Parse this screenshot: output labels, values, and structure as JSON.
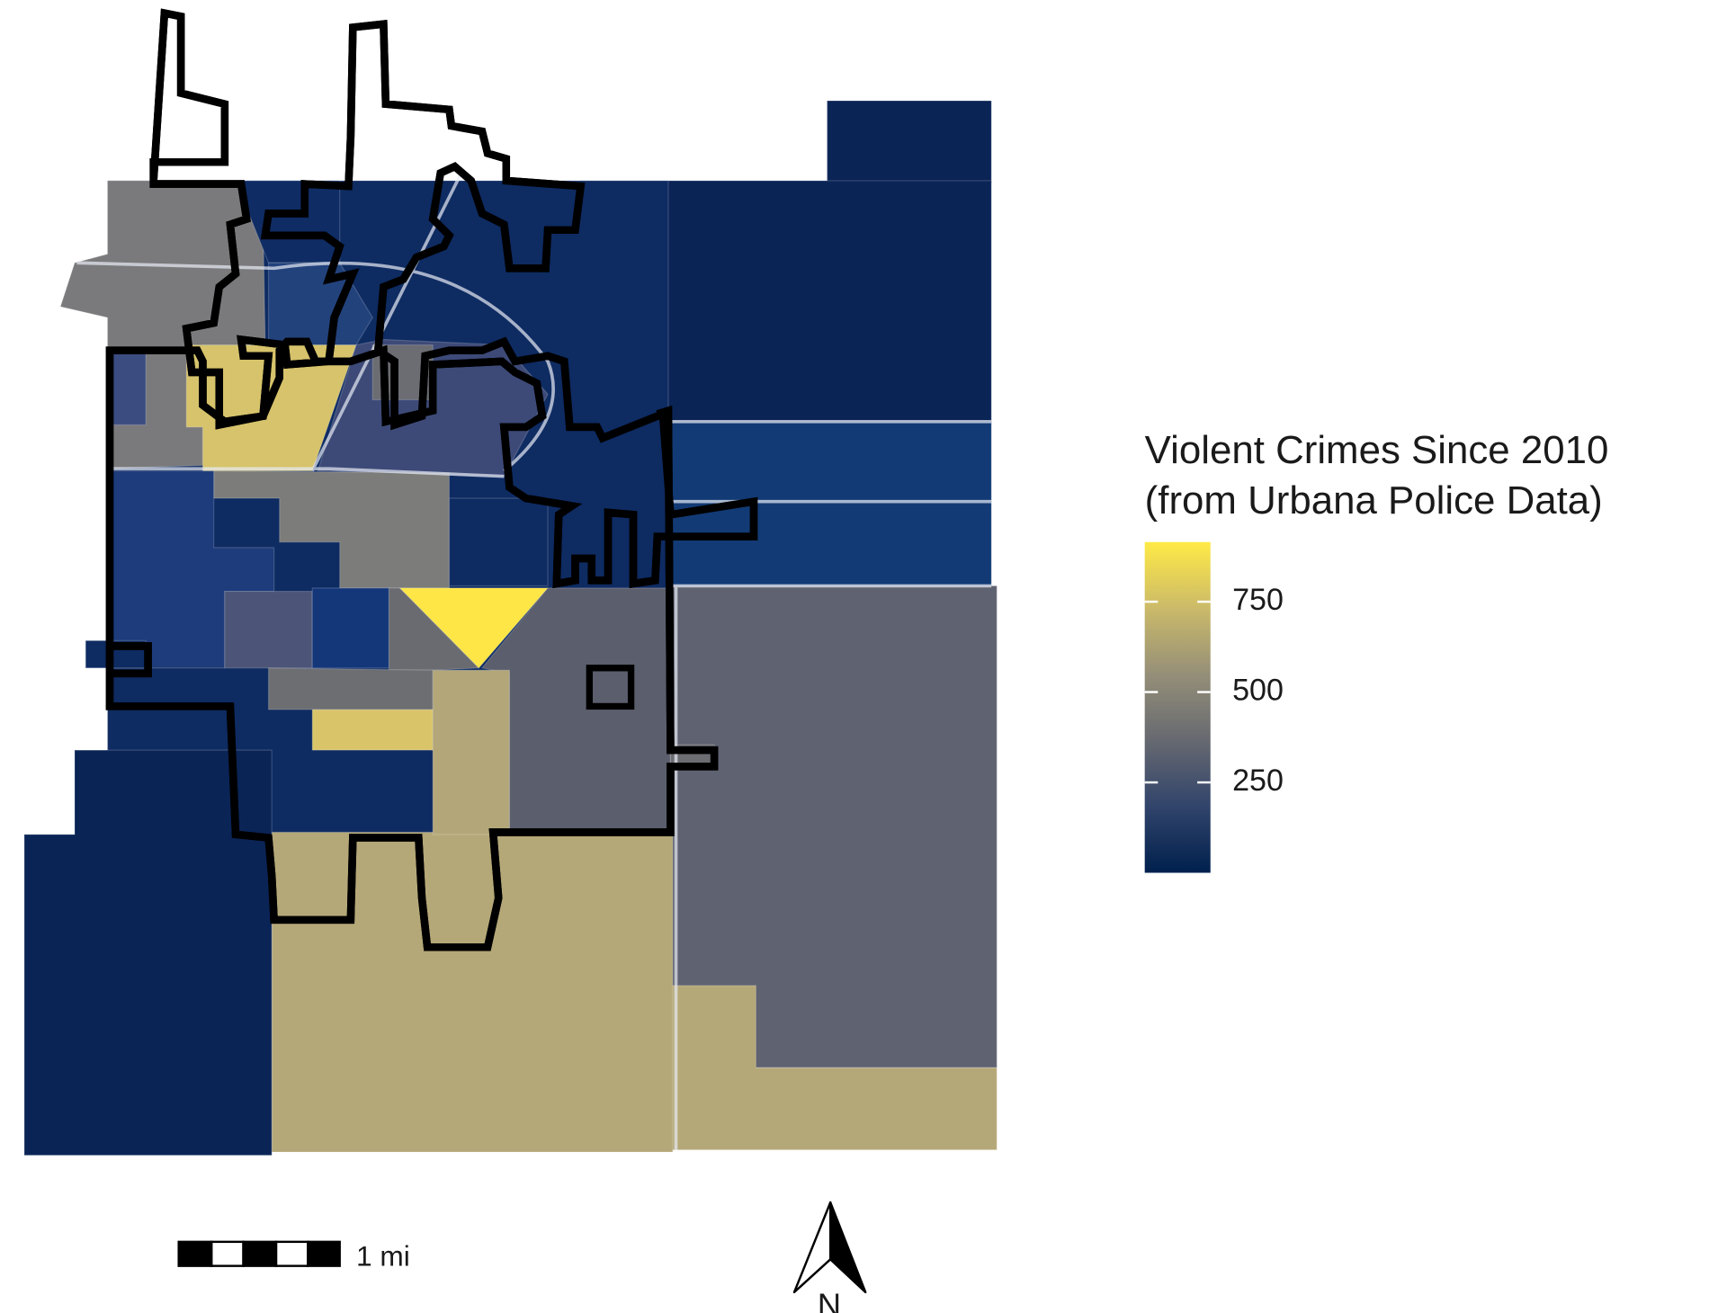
{
  "legend": {
    "title": [
      "Violent Crimes Since 2010",
      "(from Urbana Police Data)"
    ],
    "range": [
      0,
      915
    ],
    "ticks": [
      250,
      500,
      750
    ],
    "colors": [
      "#00204d",
      "#31446b",
      "#666970",
      "#958f78",
      "#cbba69",
      "#ffea46"
    ]
  },
  "scale_bar": {
    "label": "1 mi"
  },
  "north_arrow": {
    "label": "N"
  }
}
